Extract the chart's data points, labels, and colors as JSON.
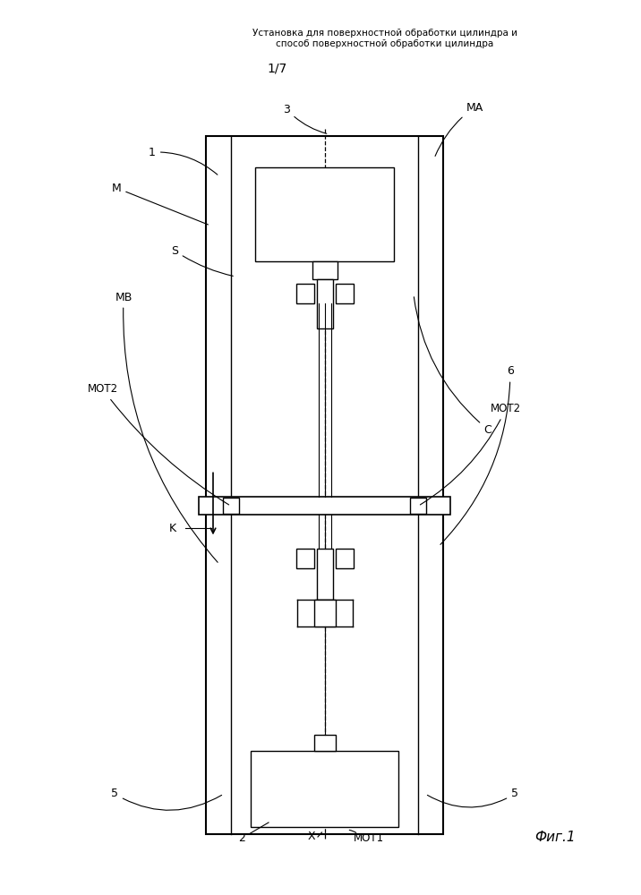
{
  "title_line1": "Установка для поверхностной обработки цилиндра и",
  "title_line2": "способ поверхностной обработки цилиндра",
  "page_label": "1/7",
  "fig_label": "Фиг.1",
  "bg_color": "#ffffff",
  "line_color": "#000000"
}
